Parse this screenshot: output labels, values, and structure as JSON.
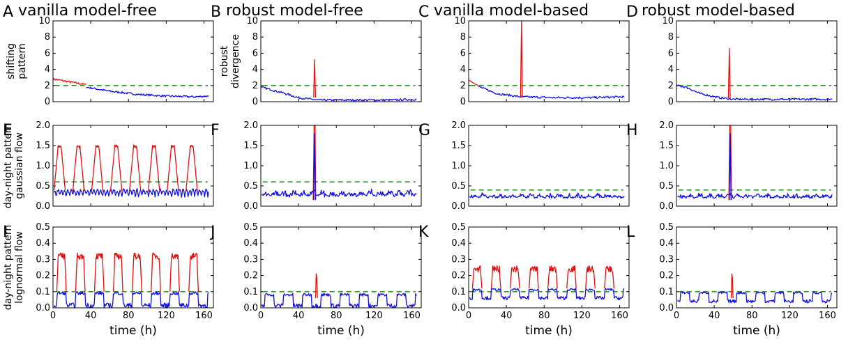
{
  "columns": [
    {
      "letter_title": "A",
      "title": "vanilla model-free"
    },
    {
      "letter_title": "B",
      "title": "robust model-free"
    },
    {
      "letter_title": "C",
      "title": "vanilla model-based"
    },
    {
      "letter_title": "D",
      "title": "robust model-based"
    }
  ],
  "rows": [
    {
      "label_lines": [
        "shifting",
        "pattern"
      ],
      "extra_label_lines": [
        "robust",
        "divergence"
      ],
      "yticks": [
        "0",
        "2",
        "4",
        "6",
        "8",
        "10"
      ],
      "ylim": [
        0,
        10
      ]
    },
    {
      "label_lines": [
        "day-night pattern",
        "gaussian flow"
      ],
      "yticks": [
        "0.0",
        "0.5",
        "1.0",
        "1.5",
        "2.0"
      ],
      "ylim": [
        0,
        2
      ]
    },
    {
      "label_lines": [
        "day-night pattern",
        "lognormal flow"
      ],
      "yticks": [
        "0.0",
        "0.1",
        "0.2",
        "0.3",
        "0.4",
        "0.5"
      ],
      "ylim": [
        0,
        0.5
      ]
    }
  ],
  "xticks": [
    "0",
    "40",
    "80",
    "120",
    "160"
  ],
  "xlabel": "time (h)",
  "colors": {
    "normal": "#1010e0",
    "anomaly": "#e01010",
    "threshold": "#2a9a2a"
  },
  "chart_data": [
    {
      "type": "line",
      "panel": "A",
      "series": [
        {
          "values_desc": "anomaly",
          "x": [
            0,
            10,
            20,
            30,
            35
          ],
          "y": [
            2.8,
            2.6,
            2.4,
            2.2,
            2.1
          ]
        },
        {
          "values_desc": "normal",
          "x": [
            35,
            60,
            90,
            120,
            150,
            165
          ],
          "y": [
            1.8,
            1.3,
            0.9,
            0.7,
            0.6,
            0.7
          ]
        }
      ],
      "threshold": 2.0,
      "xlim": [
        0,
        170
      ],
      "ylim": [
        0,
        10
      ]
    },
    {
      "type": "line",
      "panel": "B",
      "series": [
        {
          "values_desc": "normal",
          "x": [
            0,
            20,
            40,
            60,
            100,
            140,
            165
          ],
          "y": [
            1.8,
            1.2,
            0.5,
            0.2,
            0.2,
            0.2,
            0.3
          ]
        },
        {
          "values_desc": "anomaly",
          "x": [
            56,
            57,
            58
          ],
          "y": [
            0.5,
            5.2,
            0.5
          ]
        }
      ],
      "threshold": 2.0,
      "xlim": [
        0,
        170
      ],
      "ylim": [
        0,
        10
      ]
    },
    {
      "type": "line",
      "panel": "C",
      "series": [
        {
          "values_desc": "anomaly",
          "x": [
            0,
            5,
            10
          ],
          "y": [
            2.7,
            2.3,
            2.0
          ]
        },
        {
          "values_desc": "normal",
          "x": [
            10,
            30,
            55,
            90,
            130,
            165
          ],
          "y": [
            1.9,
            1.0,
            0.6,
            0.5,
            0.5,
            0.6
          ]
        },
        {
          "values_desc": "anomaly",
          "x": [
            55,
            56,
            57
          ],
          "y": [
            0.5,
            10,
            0.5
          ]
        }
      ],
      "threshold": 2.0,
      "xlim": [
        0,
        170
      ],
      "ylim": [
        0,
        10
      ]
    },
    {
      "type": "line",
      "panel": "D",
      "series": [
        {
          "values_desc": "normal",
          "x": [
            0,
            10,
            25,
            45,
            60,
            100,
            165
          ],
          "y": [
            2.0,
            1.8,
            1.0,
            0.5,
            0.3,
            0.3,
            0.3
          ]
        },
        {
          "values_desc": "anomaly",
          "x": [
            55,
            56,
            57
          ],
          "y": [
            0.4,
            6.6,
            0.4
          ]
        }
      ],
      "threshold": 2.0,
      "xlim": [
        0,
        170
      ],
      "ylim": [
        0,
        10
      ]
    },
    {
      "type": "line",
      "panel": "E",
      "description": "daily peaks",
      "peaks_h": [
        7,
        27,
        47,
        67,
        87,
        107,
        127,
        147
      ],
      "peak_value": 1.5,
      "baseline": 0.3,
      "threshold": 0.6,
      "xlim": [
        0,
        170
      ],
      "ylim": [
        0,
        2
      ]
    },
    {
      "type": "line",
      "panel": "F",
      "baseline_range": [
        0.1,
        0.45
      ],
      "spike": {
        "x": 57,
        "y": 2.0
      },
      "threshold": 0.6,
      "xlim": [
        0,
        170
      ],
      "ylim": [
        0,
        2
      ]
    },
    {
      "type": "line",
      "panel": "G",
      "baseline_range": [
        0.1,
        0.35
      ],
      "threshold": 0.4,
      "xlim": [
        0,
        170
      ],
      "ylim": [
        0,
        2
      ]
    },
    {
      "type": "line",
      "panel": "H",
      "baseline_range": [
        0.1,
        0.35
      ],
      "spike": {
        "x": 57,
        "y": 2.0
      },
      "threshold": 0.4,
      "xlim": [
        0,
        170
      ],
      "ylim": [
        0,
        2
      ]
    },
    {
      "type": "line",
      "panel": "I",
      "description": "red plateaus during day",
      "plateau_value": 0.32,
      "baseline_range": [
        0.0,
        0.1
      ],
      "threshold": 0.1,
      "xlim": [
        0,
        170
      ],
      "ylim": [
        0,
        0.5
      ]
    },
    {
      "type": "line",
      "panel": "J",
      "baseline_range": [
        0.0,
        0.09
      ],
      "spike": {
        "x": 59,
        "y": 0.21
      },
      "threshold": 0.1,
      "xlim": [
        0,
        170
      ],
      "ylim": [
        0,
        0.5
      ]
    },
    {
      "type": "line",
      "panel": "K",
      "description": "red plateaus during day",
      "plateau_value": 0.24,
      "baseline_range": [
        0.05,
        0.12
      ],
      "threshold": 0.1,
      "xlim": [
        0,
        170
      ],
      "ylim": [
        0,
        0.5
      ]
    },
    {
      "type": "line",
      "panel": "L",
      "baseline_range": [
        0.03,
        0.1
      ],
      "spike": {
        "x": 59,
        "y": 0.21
      },
      "threshold": 0.1,
      "xlim": [
        0,
        170
      ],
      "ylim": [
        0,
        0.5
      ]
    }
  ],
  "panel_letters": [
    "A",
    "B",
    "C",
    "D",
    "E",
    "F",
    "G",
    "H",
    "I",
    "J",
    "K",
    "L"
  ]
}
